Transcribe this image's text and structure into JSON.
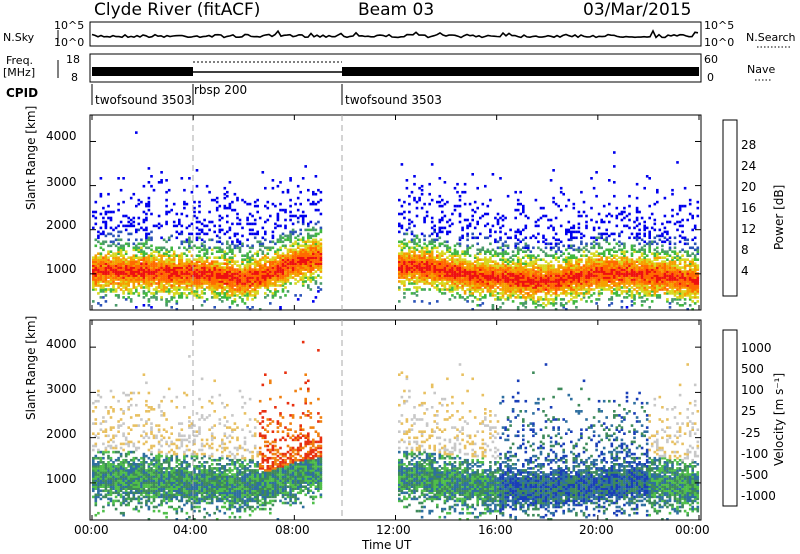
{
  "header": {
    "station": "Clyde River (fitACF)",
    "beam": "Beam 03",
    "date": "03/Mar/2015"
  },
  "panels": {
    "nsky": {
      "left_label": "N.Sky",
      "left_ticks": [
        "10^5",
        "10^0"
      ],
      "right_ticks": [
        "10^5",
        "10^0"
      ],
      "right_label": "N.Search"
    },
    "freq": {
      "left_label_1": "Freq.",
      "left_label_2": "[MHz]",
      "left_ticks": [
        "18",
        "8"
      ],
      "right_ticks": [
        "60",
        "0"
      ],
      "right_label": "Nave"
    },
    "cpid": {
      "label": "CPID",
      "segments": [
        {
          "start_hour": 0,
          "end_hour": 4,
          "name": "twofsound 3503"
        },
        {
          "start_hour": 4,
          "end_hour": 10,
          "name": "rbsp 200"
        },
        {
          "start_hour": 10,
          "end_hour": 24,
          "name": "twofsound 3503"
        }
      ]
    }
  },
  "chart_data": [
    {
      "type": "heatmap",
      "name": "power",
      "xlabel": "",
      "ylabel": "Slant Range [km]",
      "xlim": [
        0,
        24
      ],
      "ylim": [
        180,
        4600
      ],
      "yticks": [
        "1000",
        "2000",
        "3000",
        "4000"
      ],
      "colorbar_label": "Power [dB]",
      "colorbar_ticks": [
        "4",
        "8",
        "12",
        "16",
        "20",
        "24",
        "28"
      ],
      "colorbar_colors": [
        "#0000ee",
        "#2a52b8",
        "#4a9a6a",
        "#3fb83f",
        "#d8d820",
        "#f5a000",
        "#ff6a00",
        "#ee1010"
      ],
      "series": [
        {
          "hours": [
            0.0,
            1.0,
            2.0,
            3.0,
            4.0,
            5.0,
            6.0,
            7.0,
            8.0,
            9.0
          ],
          "center_km": [
            1050,
            1050,
            1050,
            1000,
            1000,
            950,
            850,
            1000,
            1250,
            1350
          ]
        },
        {
          "hours": [
            12.0,
            13.0,
            14.0,
            15.0,
            16.0,
            17.0,
            18.0,
            19.0,
            20.0,
            21.0,
            22.0,
            23.0,
            24.0
          ],
          "center_km": [
            1150,
            1150,
            1050,
            950,
            900,
            850,
            800,
            900,
            1000,
            1000,
            950,
            900,
            800
          ]
        }
      ]
    },
    {
      "type": "heatmap",
      "name": "velocity",
      "xlabel": "Time UT",
      "ylabel": "Slant Range [km]",
      "xlim": [
        0,
        24
      ],
      "ylim": [
        180,
        4600
      ],
      "xticks": [
        "00:00",
        "04:00",
        "08:00",
        "12:00",
        "16:00",
        "20:00",
        "00:00"
      ],
      "yticks": [
        "1000",
        "2000",
        "3000",
        "4000"
      ],
      "colorbar_label": "Velocity [m s⁻¹]",
      "colorbar_ticks": [
        "1000",
        "500",
        "100",
        "25",
        "-25",
        "-100",
        "-500",
        "-1000"
      ],
      "colorbar_colors": [
        "#1a3fb8",
        "#2f6fa0",
        "#3e8a5a",
        "#50bf4a",
        "#c8c8c8",
        "#e8c060",
        "#f08010",
        "#e83010",
        "#ee0000"
      ],
      "series": [
        {
          "hours": [
            0.0,
            1.0,
            2.0,
            3.0,
            4.0,
            5.0,
            6.0,
            7.0,
            8.0,
            9.0
          ],
          "center_km": [
            1100,
            1100,
            1050,
            1000,
            1000,
            950,
            900,
            1000,
            1200,
            1300
          ]
        },
        {
          "hours": [
            12.0,
            13.0,
            14.0,
            15.0,
            16.0,
            17.0,
            18.0,
            19.0,
            20.0,
            21.0,
            22.0,
            23.0,
            24.0
          ],
          "center_km": [
            1100,
            1100,
            1000,
            950,
            900,
            850,
            850,
            900,
            950,
            1000,
            1000,
            900,
            850
          ]
        }
      ]
    }
  ]
}
